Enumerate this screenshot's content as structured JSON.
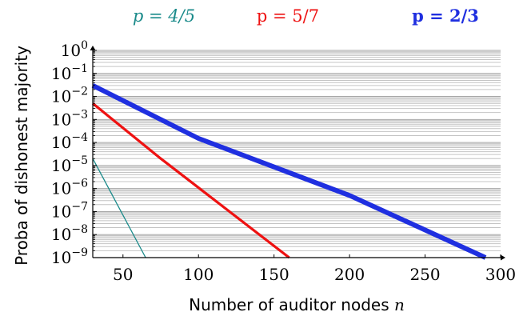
{
  "chart_data": {
    "type": "line",
    "xlabel": "Number of auditor nodes",
    "xlabel_var": "n",
    "ylabel": "Proba of dishonest majority",
    "xlim": [
      30,
      300
    ],
    "ylim_log10": [
      -9,
      0
    ],
    "y_scale": "log",
    "grid": "horizontal minor log gridlines",
    "legend_position": "top",
    "x_ticks": [
      50,
      100,
      150,
      200,
      250,
      300
    ],
    "x_tick_labels": [
      "50",
      "100",
      "150",
      "200",
      "250",
      "300"
    ],
    "y_ticks_log10": [
      0,
      -1,
      -2,
      -3,
      -4,
      -5,
      -6,
      -7,
      -8,
      -9
    ],
    "y_tick_labels": [
      {
        "base": "10",
        "exp": "0"
      },
      {
        "base": "10",
        "exp": "−1"
      },
      {
        "base": "10",
        "exp": "−2"
      },
      {
        "base": "10",
        "exp": "−3"
      },
      {
        "base": "10",
        "exp": "−4"
      },
      {
        "base": "10",
        "exp": "−5"
      },
      {
        "base": "10",
        "exp": "−6"
      },
      {
        "base": "10",
        "exp": "−7"
      },
      {
        "base": "10",
        "exp": "−8"
      },
      {
        "base": "10",
        "exp": "−9"
      }
    ],
    "series": [
      {
        "name": "p = 4/5",
        "color": "#1a8a8a",
        "style": "italic",
        "x": [
          30,
          65
        ],
        "y": [
          2e-05,
          1e-09
        ]
      },
      {
        "name": "p = 5/7",
        "color": "#ee1111",
        "style": "normal",
        "x": [
          30,
          75,
          160
        ],
        "y": [
          0.005,
          2e-05,
          1e-09
        ]
      },
      {
        "name": "p = 2/3",
        "color": "#1f2fe0",
        "style": "bold",
        "x": [
          30,
          100,
          200,
          290
        ],
        "y": [
          0.03,
          0.00015,
          5e-07,
          1e-09
        ]
      }
    ]
  }
}
